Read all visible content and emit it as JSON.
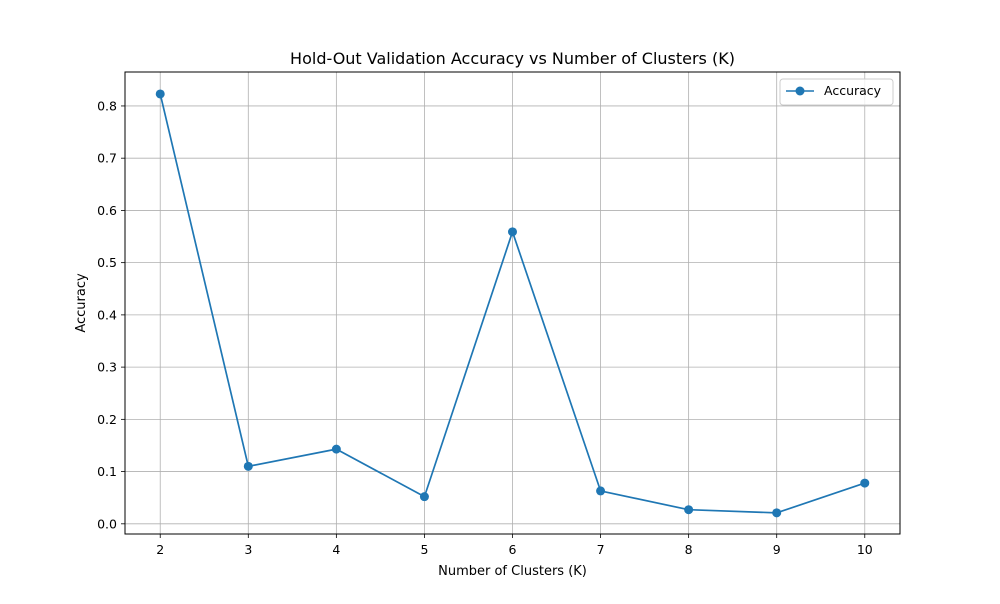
{
  "chart_data": {
    "type": "line",
    "title": "Hold-Out Validation Accuracy vs Number of Clusters (K)",
    "xlabel": "Number of Clusters (K)",
    "ylabel": "Accuracy",
    "x": [
      2,
      3,
      4,
      5,
      6,
      7,
      8,
      9,
      10
    ],
    "xlim": [
      1.6,
      10.4
    ],
    "ylim": [
      -0.0195,
      0.865
    ],
    "x_ticks": [
      2,
      3,
      4,
      5,
      6,
      7,
      8,
      9,
      10
    ],
    "y_ticks": [
      0.0,
      0.1,
      0.2,
      0.3,
      0.4,
      0.5,
      0.6,
      0.7,
      0.8
    ],
    "series": [
      {
        "name": "Accuracy",
        "color": "#1f77b4",
        "marker": "circle",
        "values": [
          0.823,
          0.11,
          0.143,
          0.052,
          0.559,
          0.063,
          0.027,
          0.021,
          0.078
        ]
      }
    ],
    "grid": true,
    "legend_position": "top-right"
  }
}
